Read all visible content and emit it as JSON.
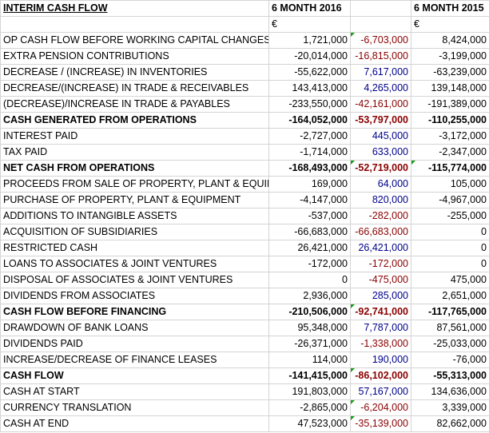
{
  "header": {
    "title": "INTERIM CASH FLOW",
    "col_2016": "6 MONTH 2016",
    "col_2015": "6 MONTH 2015",
    "currency_2016": "€",
    "currency_2015": "€"
  },
  "colors": {
    "difference_negative": "#8b0000",
    "difference_positive": "#00008b",
    "comment_marker": "#1a9a1a"
  },
  "rows": [
    {
      "label": "OP CASH FLOW BEFORE WORKING CAPITAL CHANGES",
      "y2016": "1,721,000",
      "diff": "-6,703,000",
      "y2015": "8,424,000",
      "bold": false,
      "tri_diff": true,
      "tri_2015": false
    },
    {
      "label": "EXTRA PENSION CONTRIBUTIONS",
      "y2016": "-20,014,000",
      "diff": "-16,815,000",
      "y2015": "-3,199,000",
      "bold": false,
      "tri_diff": false,
      "tri_2015": false
    },
    {
      "label": "DECREASE / (INCREASE) IN INVENTORIES",
      "y2016": "-55,622,000",
      "diff": "7,617,000",
      "y2015": "-63,239,000",
      "bold": false,
      "tri_diff": false,
      "tri_2015": false
    },
    {
      "label": "DECREASE/(INCREASE) IN TRADE & RECEIVABLES",
      "y2016": "143,413,000",
      "diff": "4,265,000",
      "y2015": "139,148,000",
      "bold": false,
      "tri_diff": false,
      "tri_2015": false
    },
    {
      "label": "(DECREASE)/INCREASE IN TRADE & PAYABLES",
      "y2016": "-233,550,000",
      "diff": "-42,161,000",
      "y2015": "-191,389,000",
      "bold": false,
      "tri_diff": false,
      "tri_2015": false
    },
    {
      "label": "CASH GENERATED FROM OPERATIONS",
      "y2016": "-164,052,000",
      "diff": "-53,797,000",
      "y2015": "-110,255,000",
      "bold": true,
      "tri_diff": false,
      "tri_2015": false
    },
    {
      "label": "INTEREST PAID",
      "y2016": "-2,727,000",
      "diff": "445,000",
      "y2015": "-3,172,000",
      "bold": false,
      "tri_diff": false,
      "tri_2015": false
    },
    {
      "label": "TAX PAID",
      "y2016": "-1,714,000",
      "diff": "633,000",
      "y2015": "-2,347,000",
      "bold": false,
      "tri_diff": false,
      "tri_2015": false
    },
    {
      "label": "NET CASH FROM OPERATIONS",
      "y2016": "-168,493,000",
      "diff": "-52,719,000",
      "y2015": "-115,774,000",
      "bold": true,
      "tri_diff": true,
      "tri_2015": true
    },
    {
      "label": "PROCEEDS FROM SALE OF PROPERTY, PLANT & EQUIP",
      "y2016": "169,000",
      "diff": "64,000",
      "y2015": "105,000",
      "bold": false,
      "tri_diff": false,
      "tri_2015": false
    },
    {
      "label": "PURCHASE OF PROPERTY, PLANT & EQUIPMENT",
      "y2016": "-4,147,000",
      "diff": "820,000",
      "y2015": "-4,967,000",
      "bold": false,
      "tri_diff": false,
      "tri_2015": false
    },
    {
      "label": "ADDITIONS TO INTANGIBLE ASSETS",
      "y2016": "-537,000",
      "diff": "-282,000",
      "y2015": "-255,000",
      "bold": false,
      "tri_diff": false,
      "tri_2015": false
    },
    {
      "label": "ACQUISITION OF SUBSIDIARIES",
      "y2016": "-66,683,000",
      "diff": "-66,683,000",
      "y2015": "0",
      "bold": false,
      "tri_diff": false,
      "tri_2015": false
    },
    {
      "label": "RESTRICTED CASH",
      "y2016": "26,421,000",
      "diff": "26,421,000",
      "y2015": "0",
      "bold": false,
      "tri_diff": false,
      "tri_2015": false
    },
    {
      "label": "LOANS TO ASSOCIATES & JOINT VENTURES",
      "y2016": "-172,000",
      "diff": "-172,000",
      "y2015": "0",
      "bold": false,
      "tri_diff": false,
      "tri_2015": false
    },
    {
      "label": "DISPOSAL OF ASSOCIATES & JOINT VENTURES",
      "y2016": "0",
      "diff": "-475,000",
      "y2015": "475,000",
      "bold": false,
      "tri_diff": false,
      "tri_2015": false
    },
    {
      "label": "DIVIDENDS FROM ASSOCIATES",
      "y2016": "2,936,000",
      "diff": "285,000",
      "y2015": "2,651,000",
      "bold": false,
      "tri_diff": false,
      "tri_2015": false
    },
    {
      "label": "CASH FLOW BEFORE FINANCING",
      "y2016": "-210,506,000",
      "diff": "-92,741,000",
      "y2015": "-117,765,000",
      "bold": true,
      "tri_diff": true,
      "tri_2015": false
    },
    {
      "label": "DRAWDOWN OF BANK LOANS",
      "y2016": "95,348,000",
      "diff": "7,787,000",
      "y2015": "87,561,000",
      "bold": false,
      "tri_diff": false,
      "tri_2015": false
    },
    {
      "label": "DIVIDENDS PAID",
      "y2016": "-26,371,000",
      "diff": "-1,338,000",
      "y2015": "-25,033,000",
      "bold": false,
      "tri_diff": false,
      "tri_2015": false
    },
    {
      "label": "INCREASE/DECREASE OF FINANCE LEASES",
      "y2016": "114,000",
      "diff": "190,000",
      "y2015": "-76,000",
      "bold": false,
      "tri_diff": false,
      "tri_2015": false
    },
    {
      "label": "CASH FLOW",
      "y2016": "-141,415,000",
      "diff": "-86,102,000",
      "y2015": "-55,313,000",
      "bold": true,
      "tri_diff": true,
      "tri_2015": false
    },
    {
      "label": "CASH AT START",
      "y2016": "191,803,000",
      "diff": "57,167,000",
      "y2015": "134,636,000",
      "bold": false,
      "tri_diff": false,
      "tri_2015": false
    },
    {
      "label": "CURRENCY TRANSLATION",
      "y2016": "-2,865,000",
      "diff": "-6,204,000",
      "y2015": "3,339,000",
      "bold": false,
      "tri_diff": true,
      "tri_2015": false
    },
    {
      "label": "CASH AT END",
      "y2016": "47,523,000",
      "diff": "-35,139,000",
      "y2015": "82,662,000",
      "bold": false,
      "tri_diff": true,
      "tri_2015": false
    }
  ]
}
